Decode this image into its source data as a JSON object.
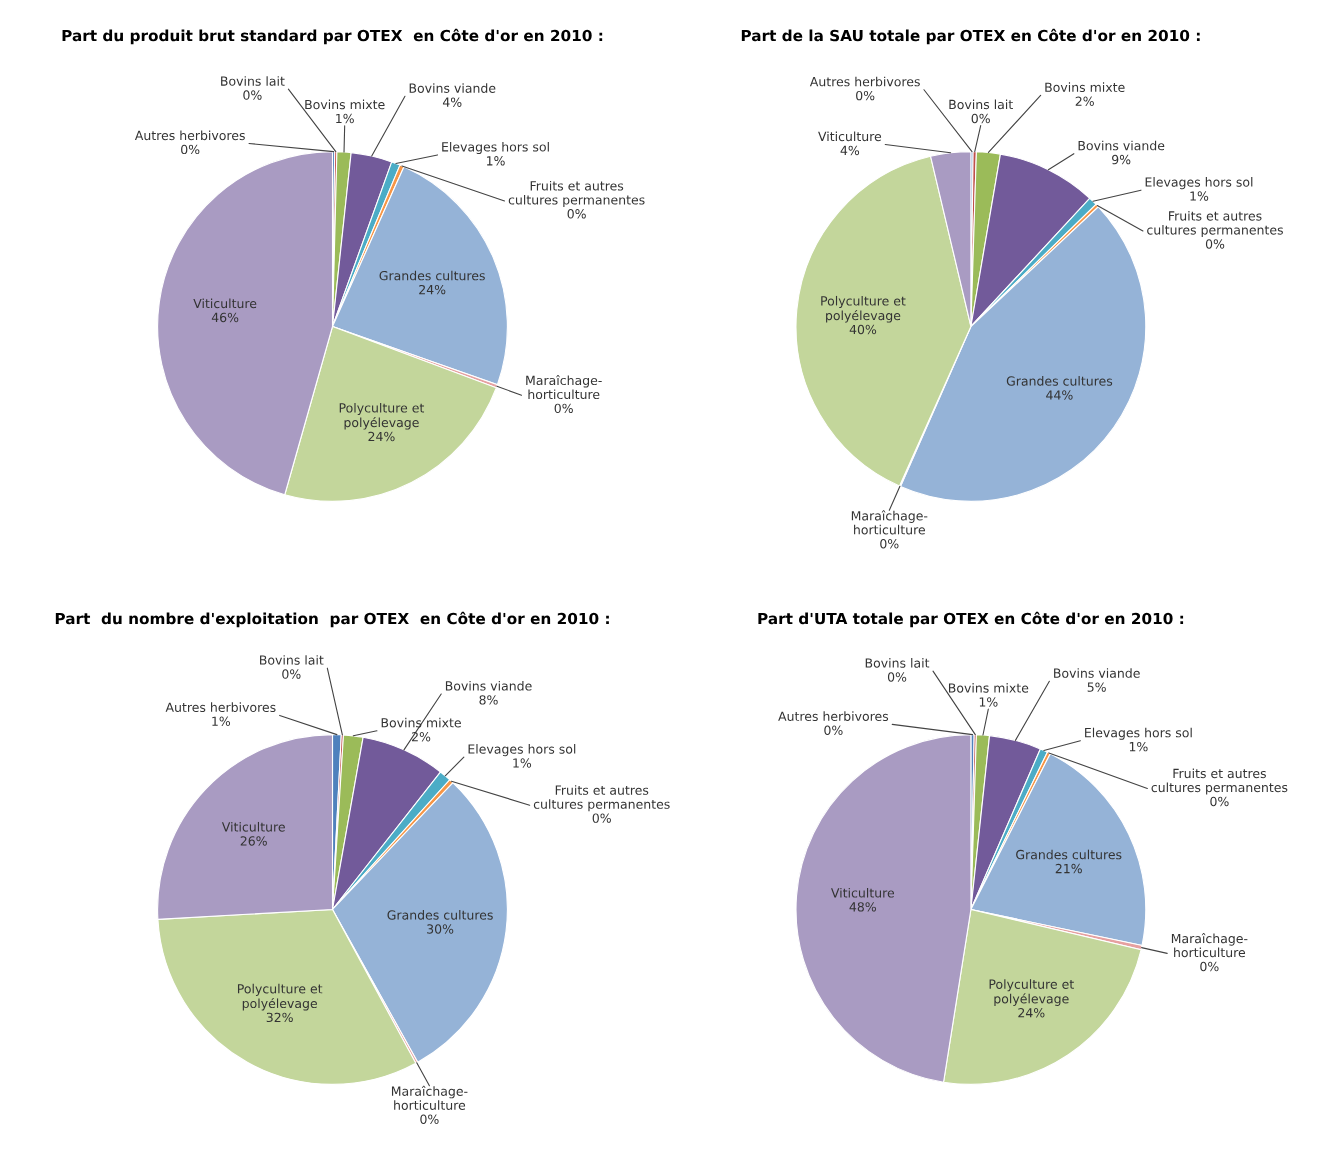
{
  "chart_data": [
    {
      "type": "pie",
      "title": "Part du produit brut standard par OTEX  en Côte d'or en 2010 :",
      "categories": [
        "Autres herbivores",
        "Bovins lait",
        "Bovins mixte",
        "Bovins viande",
        "Elevages hors sol",
        "Fruits et autres\ncultures permanentes",
        "Grandes cultures",
        "Maraîchage-\nhorticulture",
        "Polyculture et\npolyélevage",
        "Viticulture"
      ],
      "values": [
        0.2,
        0.2,
        1.3,
        3.8,
        0.8,
        0.4,
        23.7,
        0.3,
        23.7,
        45.6
      ],
      "value_labels": [
        "0%",
        "0%",
        "1%",
        "4%",
        "1%",
        "0%",
        "24%",
        "0%",
        "24%",
        "46%"
      ],
      "colors": [
        "#4f81bd",
        "#c0504d",
        "#9bbb59",
        "#725a9a",
        "#4bacc6",
        "#f79646",
        "#95b3d7",
        "#e6a0a0",
        "#c3d69b",
        "#a99bc2"
      ]
    },
    {
      "type": "pie",
      "title": "Part de la SAU totale par OTEX en Côte d'or en 2010 :",
      "categories": [
        "Autres herbivores",
        "Bovins lait",
        "Bovins mixte",
        "Bovins viande",
        "Elevages hors sol",
        "Fruits et autres\ncultures permanentes",
        "Grandes cultures",
        "Maraîchage-\nhorticulture",
        "Polyculture et\npolyélevage",
        "Viticulture"
      ],
      "values": [
        0.2,
        0.3,
        2.2,
        9.2,
        0.8,
        0.3,
        43.6,
        0.1,
        39.6,
        3.7
      ],
      "value_labels": [
        "0%",
        "0%",
        "2%",
        "9%",
        "1%",
        "0%",
        "44%",
        "0%",
        "40%",
        "4%"
      ],
      "colors": [
        "#4f81bd",
        "#c0504d",
        "#9bbb59",
        "#725a9a",
        "#4bacc6",
        "#f79646",
        "#95b3d7",
        "#e6a0a0",
        "#c3d69b",
        "#a99bc2"
      ]
    },
    {
      "type": "pie",
      "title": "Part  du nombre d'exploitation  par OTEX  en Côte d'or en 2010 :",
      "categories": [
        "Autres herbivores",
        "Bovins lait",
        "Bovins mixte",
        "Bovins viande",
        "Elevages hors sol",
        "Fruits et autres\ncultures permanentes",
        "Grandes cultures",
        "Maraîchage-\nhorticulture",
        "Polyculture et\npolyélevage",
        "Viticulture"
      ],
      "values": [
        0.8,
        0.2,
        1.8,
        7.8,
        1.1,
        0.4,
        29.8,
        0.2,
        32.0,
        25.9
      ],
      "value_labels": [
        "1%",
        "0%",
        "2%",
        "8%",
        "1%",
        "0%",
        "30%",
        "0%",
        "32%",
        "26%"
      ],
      "colors": [
        "#4f81bd",
        "#c0504d",
        "#9bbb59",
        "#725a9a",
        "#4bacc6",
        "#f79646",
        "#95b3d7",
        "#e6a0a0",
        "#c3d69b",
        "#a99bc2"
      ]
    },
    {
      "type": "pie",
      "title": "Part d'UTA totale par OTEX en Côte d'or en 2010 :",
      "categories": [
        "Autres herbivores",
        "Bovins lait",
        "Bovins mixte",
        "Bovins viande",
        "Elevages hors sol",
        "Fruits et autres\ncultures permanentes",
        "Grandes cultures",
        "Maraîchage-\nhorticulture",
        "Polyculture et\npolyélevage",
        "Viticulture"
      ],
      "values": [
        0.3,
        0.2,
        1.2,
        4.8,
        0.7,
        0.3,
        20.8,
        0.4,
        23.8,
        47.5
      ],
      "value_labels": [
        "0%",
        "0%",
        "1%",
        "5%",
        "1%",
        "0%",
        "21%",
        "0%",
        "24%",
        "48%"
      ],
      "colors": [
        "#4f81bd",
        "#c0504d",
        "#9bbb59",
        "#725a9a",
        "#4bacc6",
        "#f79646",
        "#95b3d7",
        "#e6a0a0",
        "#c3d69b",
        "#a99bc2"
      ]
    }
  ]
}
